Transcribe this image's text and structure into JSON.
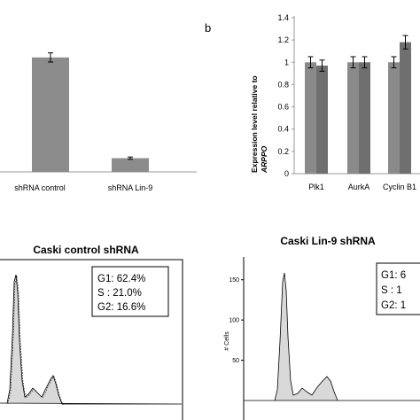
{
  "panel_b": {
    "letter": "b"
  },
  "chart_data": [
    {
      "type": "bar",
      "categories": [
        "shRNA control",
        "shRNA Lin-9"
      ],
      "values": [
        1.0,
        0.12
      ],
      "errors": [
        0.04,
        0.01
      ],
      "ylim": [
        0,
        1.2
      ],
      "colors": {
        "bar": "#8c8c8c"
      }
    },
    {
      "type": "bar",
      "categories": [
        "Plk1",
        "AurkA",
        "Cyclin B1"
      ],
      "series": [
        {
          "values": [
            1.0,
            1.0,
            1.0
          ],
          "errors": [
            0.05,
            0.05,
            0.05
          ]
        },
        {
          "values": [
            0.97,
            1.0,
            1.18
          ],
          "errors": [
            0.05,
            0.05,
            0.06
          ]
        }
      ],
      "ylabel_line1": "Expression level relative to",
      "ylabel_line2": "ARPPO",
      "yticks": [
        "0",
        "0.2",
        "0.4",
        "0.6",
        "0.8",
        "1",
        "1.2",
        "1.4"
      ],
      "ylim": [
        0,
        1.4
      ],
      "colors": {
        "series1": "#8a8a8a",
        "series2": "#6f6f6f"
      }
    },
    {
      "type": "area",
      "title": "Caski control shRNA",
      "stats": [
        {
          "label": "G1:",
          "value": "62.4%"
        },
        {
          "label": "S  :",
          "value": "21.0%"
        },
        {
          "label": "G2:",
          "value": "16.6%"
        }
      ]
    },
    {
      "type": "area",
      "title": "Caski Lin-9 shRNA",
      "ylabel": "# Cells",
      "yticks": [
        "50",
        "100",
        "150"
      ],
      "ylim": [
        0,
        175
      ],
      "stats": [
        {
          "label": "G1:",
          "value": "6"
        },
        {
          "label": "S  :",
          "value": "1"
        },
        {
          "label": "G2:",
          "value": "1"
        }
      ]
    }
  ]
}
